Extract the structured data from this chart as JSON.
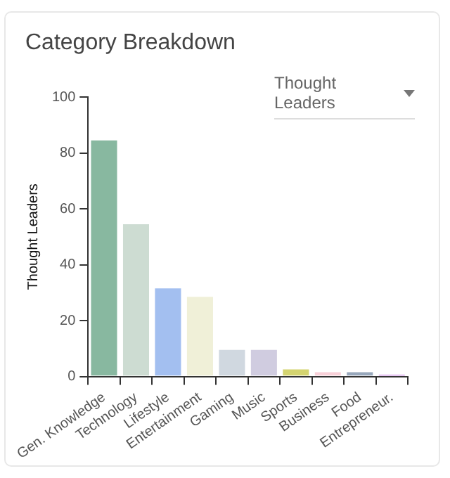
{
  "chart_data": {
    "type": "bar",
    "title": "Category Breakdown",
    "subtitle": "Thought Leaders",
    "ylabel": "Thought Leaders",
    "categories": [
      "Gen. Knowledge",
      "Technology",
      "Lifestyle",
      "Entertainment",
      "Gaming",
      "Music",
      "Sports",
      "Business",
      "Food",
      "Entrepreneur."
    ],
    "values": [
      85,
      55,
      32,
      29,
      10,
      10,
      3,
      2,
      2,
      1
    ],
    "colors": [
      "#88b8a0",
      "#cddcd2",
      "#a3bff0",
      "#f0f0d8",
      "#d0d8e0",
      "#d0cce0",
      "#d4d470",
      "#f8d0d8",
      "#98a8bc",
      "#d090e8"
    ],
    "ylim": [
      0,
      100
    ],
    "yticks": [
      0,
      20,
      40,
      60,
      80,
      100
    ],
    "grid": false,
    "legend": false
  }
}
